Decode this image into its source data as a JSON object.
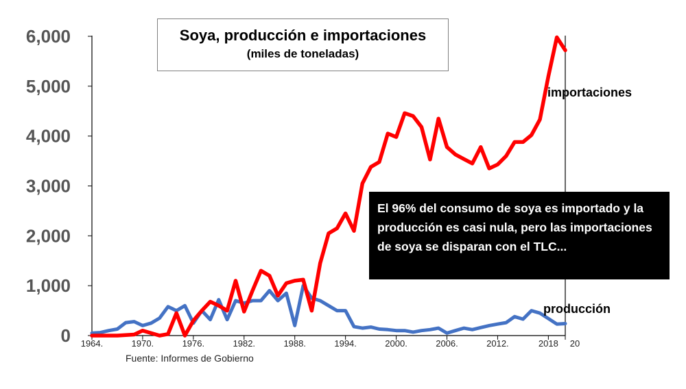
{
  "chart_data": {
    "type": "line",
    "title": "Soya, producción e importaciones",
    "subtitle": "(miles de toneladas)",
    "xlabel": "",
    "ylabel": "",
    "ylim": [
      0,
      6000
    ],
    "xlim": [
      1964,
      2020
    ],
    "grid": false,
    "y_ticks": [
      "0",
      "1,000",
      "2,000",
      "3,000",
      "4,000",
      "5,000",
      "6,000"
    ],
    "y_tick_values": [
      0,
      1000,
      2000,
      3000,
      4000,
      5000,
      6000
    ],
    "x_ticks": [
      "1964.",
      "1970.",
      "1976.",
      "1982.",
      "1988.",
      "1994.",
      "2000.",
      "2006.",
      "2012.",
      "2018",
      "20"
    ],
    "x_tick_values": [
      1964,
      1970,
      1976,
      1982,
      1988,
      1994,
      2000,
      2006,
      2012,
      2018,
      2020
    ],
    "x": [
      1964,
      1965,
      1966,
      1967,
      1968,
      1969,
      1970,
      1971,
      1972,
      1973,
      1974,
      1975,
      1976,
      1977,
      1978,
      1979,
      1980,
      1981,
      1982,
      1983,
      1984,
      1985,
      1986,
      1987,
      1988,
      1989,
      1990,
      1991,
      1992,
      1993,
      1994,
      1995,
      1996,
      1997,
      1998,
      1999,
      2000,
      2001,
      2002,
      2003,
      2004,
      2005,
      2006,
      2007,
      2008,
      2009,
      2010,
      2011,
      2012,
      2013,
      2014,
      2015,
      2016,
      2017,
      2018,
      2019,
      2020
    ],
    "series": [
      {
        "name": "importaciones",
        "color": "#ff0000",
        "values": [
          0,
          0,
          0,
          0,
          10,
          20,
          100,
          50,
          0,
          30,
          450,
          0,
          300,
          500,
          680,
          600,
          500,
          1100,
          480,
          900,
          1300,
          1200,
          800,
          1050,
          1100,
          1120,
          500,
          1450,
          2050,
          2150,
          2450,
          2100,
          3050,
          3380,
          3480,
          4050,
          3980,
          4460,
          4400,
          4180,
          3530,
          4350,
          3780,
          3630,
          3540,
          3450,
          3780,
          3350,
          3430,
          3600,
          3880,
          3880,
          4020,
          4330,
          5200,
          5980,
          5720
        ]
      },
      {
        "name": "producción",
        "color": "#4472c4",
        "values": [
          50,
          60,
          100,
          130,
          260,
          280,
          200,
          250,
          350,
          580,
          500,
          600,
          250,
          500,
          320,
          720,
          320,
          700,
          650,
          700,
          700,
          900,
          700,
          850,
          200,
          1000,
          750,
          700,
          600,
          500,
          500,
          180,
          150,
          170,
          130,
          120,
          100,
          100,
          70,
          100,
          120,
          150,
          50,
          100,
          150,
          120,
          160,
          200,
          230,
          260,
          380,
          330,
          500,
          450,
          340,
          230,
          240
        ]
      }
    ]
  },
  "title_box": {
    "title": "Soya, producción e importaciones",
    "subtitle": "(miles de toneladas)"
  },
  "annotation": {
    "text": "El 96% del consumo de soya es importado y la producción es casi nula, pero las importaciones de soya se disparan con el TLC..."
  },
  "labels": {
    "imports": "importaciones",
    "production": "producción"
  },
  "source": "Fuente: Informes de Gobierno"
}
